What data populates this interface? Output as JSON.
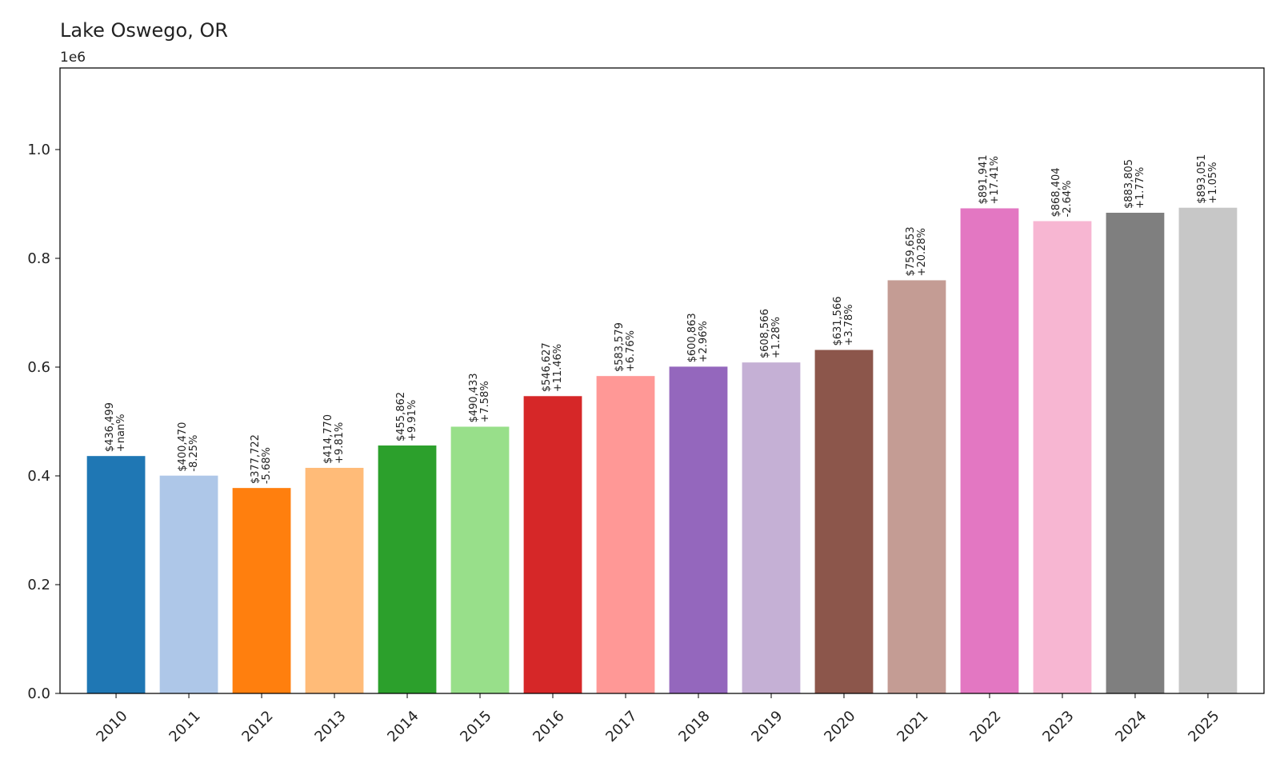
{
  "chart_data": {
    "type": "bar",
    "title": "Lake Oswego, OR",
    "offset_label": "1e6",
    "xlabel": "",
    "ylabel": "",
    "ylim": [
      0,
      1150000
    ],
    "yticks": [
      0,
      200000,
      400000,
      600000,
      800000,
      1000000
    ],
    "ytick_labels": [
      "0.0",
      "0.2",
      "0.4",
      "0.6",
      "0.8",
      "1.0"
    ],
    "grid": false,
    "categories": [
      "2010",
      "2011",
      "2012",
      "2013",
      "2014",
      "2015",
      "2016",
      "2017",
      "2018",
      "2019",
      "2020",
      "2021",
      "2022",
      "2023",
      "2024",
      "2025"
    ],
    "values": [
      436499,
      400470,
      377722,
      414770,
      455862,
      490433,
      546627,
      583579,
      600863,
      608566,
      631566,
      759653,
      891941,
      868404,
      883805,
      893051
    ],
    "value_labels": [
      "$436,499",
      "$400,470",
      "$377,722",
      "$414,770",
      "$455,862",
      "$490,433",
      "$546,627",
      "$583,579",
      "$600,863",
      "$608,566",
      "$631,566",
      "$759,653",
      "$891,941",
      "$868,404",
      "$883,805",
      "$893,051"
    ],
    "change_labels": [
      "+nan%",
      "-8.25%",
      "-5.68%",
      "+9.81%",
      "+9.91%",
      "+7.58%",
      "+11.46%",
      "+6.76%",
      "+2.96%",
      "+1.28%",
      "+3.78%",
      "+20.28%",
      "+17.41%",
      "-2.64%",
      "+1.77%",
      "+1.05%"
    ],
    "colors": [
      "#1f77b4",
      "#aec7e8",
      "#ff7f0e",
      "#ffbb78",
      "#2ca02c",
      "#98df8a",
      "#d62728",
      "#ff9896",
      "#9467bd",
      "#c5b0d5",
      "#8c564b",
      "#c49c94",
      "#e377c2",
      "#f7b6d2",
      "#7f7f7f",
      "#c7c7c7"
    ]
  }
}
